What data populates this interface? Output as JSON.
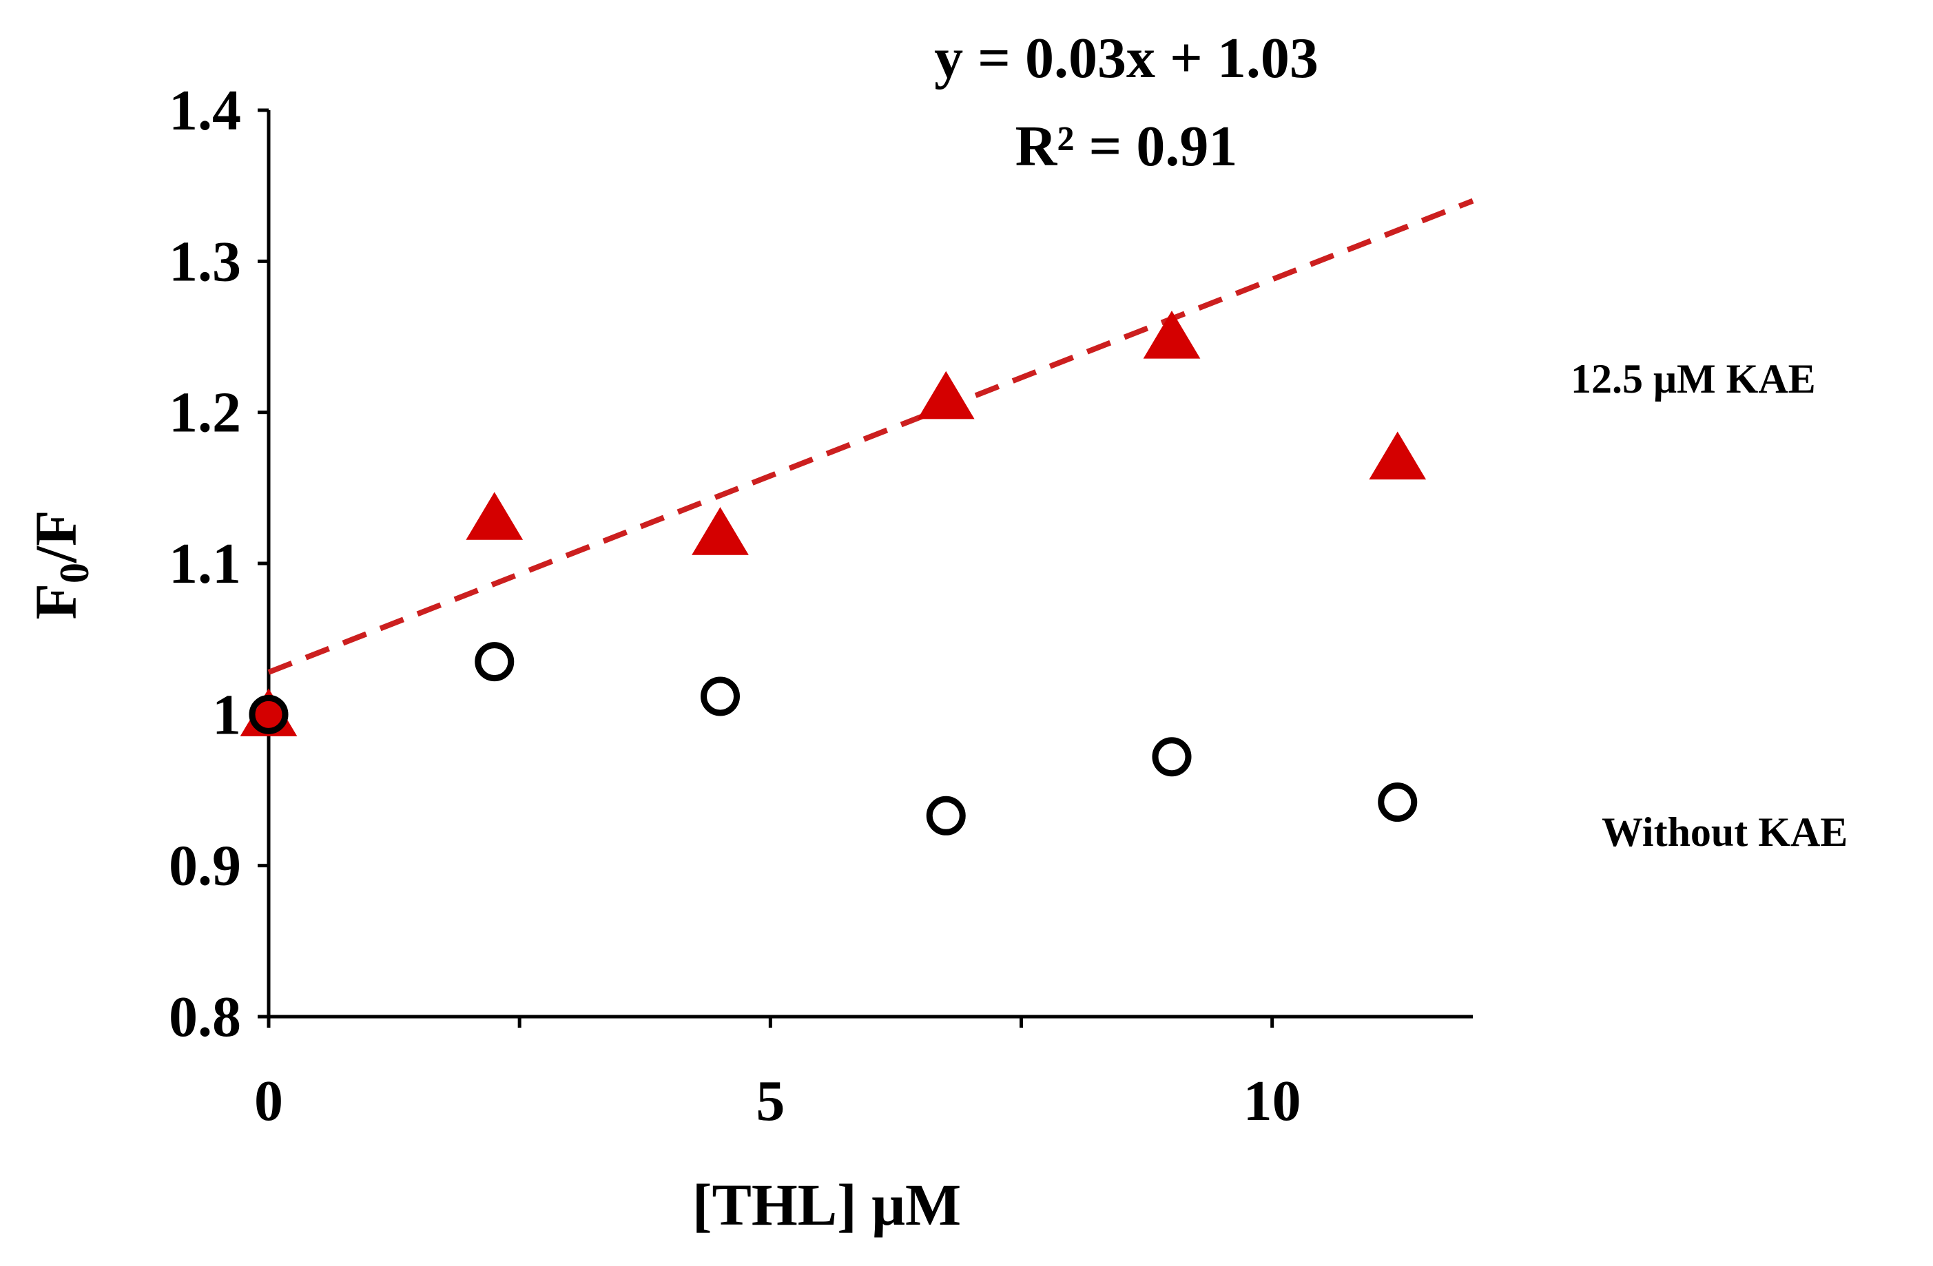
{
  "chart_data": {
    "type": "scatter",
    "xlabel": "[THL] μM",
    "ylabel_main": "F",
    "ylabel_sub": "0",
    "ylabel_tail": "/F",
    "xlim": [
      0,
      12
    ],
    "ylim": [
      0.8,
      1.4
    ],
    "x_ticks": [
      0,
      5,
      10
    ],
    "x_minor_ticks": [
      2.5,
      7.5
    ],
    "y_ticks": [
      0.8,
      0.9,
      1.0,
      1.1,
      1.2,
      1.3,
      1.4
    ],
    "y_tick_labels": [
      "0.8",
      "0.9",
      "1",
      "1.1",
      "1.2",
      "1.3",
      "1.4"
    ],
    "grid": false,
    "series": [
      {
        "name": "12.5 μM KAE",
        "marker": "triangle",
        "color": "#d40000",
        "x": [
          0,
          2.25,
          4.5,
          6.75,
          9.0,
          11.25
        ],
        "y": [
          1.0,
          1.13,
          1.12,
          1.21,
          1.25,
          1.17
        ]
      },
      {
        "name": "Without KAE",
        "marker": "open-circle",
        "color": "#000000",
        "x": [
          0,
          2.25,
          4.5,
          6.75,
          9.0,
          11.25
        ],
        "y": [
          1.0,
          1.035,
          1.012,
          0.933,
          0.972,
          0.942
        ]
      }
    ],
    "trendline": {
      "series": "12.5 μM KAE",
      "slope": 0.026,
      "intercept": 1.028,
      "x_range": [
        0,
        12
      ],
      "color": "#cc1f1f",
      "style": "dashed",
      "equation": "y = 0.03x + 1.03",
      "r_squared": "R² = 0.91"
    }
  }
}
